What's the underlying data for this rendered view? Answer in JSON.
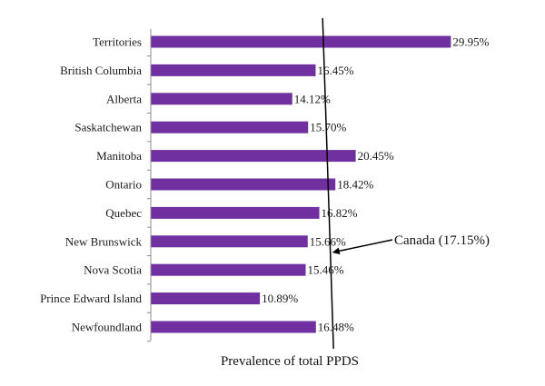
{
  "chart_data": {
    "type": "bar",
    "orientation": "horizontal",
    "categories": [
      "Territories",
      "British Columbia",
      "Alberta",
      "Saskatchewan",
      "Manitoba",
      "Ontario",
      "Quebec",
      "New Brunswick",
      "Nova Scotia",
      "Prince Edward Island",
      "Newfoundland"
    ],
    "values": [
      29.95,
      16.45,
      14.12,
      15.7,
      20.45,
      18.42,
      16.82,
      15.66,
      15.46,
      10.89,
      16.48
    ],
    "value_labels": [
      "29.95%",
      "16.45%",
      "14.12%",
      "15.70%",
      "20.45%",
      "18.42%",
      "16.82%",
      "15.66%",
      "15.46%",
      "10.89%",
      "16.48%"
    ],
    "xlabel": "Prevalence of total PPDS",
    "xlim": [
      0,
      32
    ],
    "bar_color": "#7030a0",
    "grid": false,
    "reference_line": {
      "value": 17.15,
      "label": "Canada (17.15%)",
      "color": "#000000"
    }
  }
}
